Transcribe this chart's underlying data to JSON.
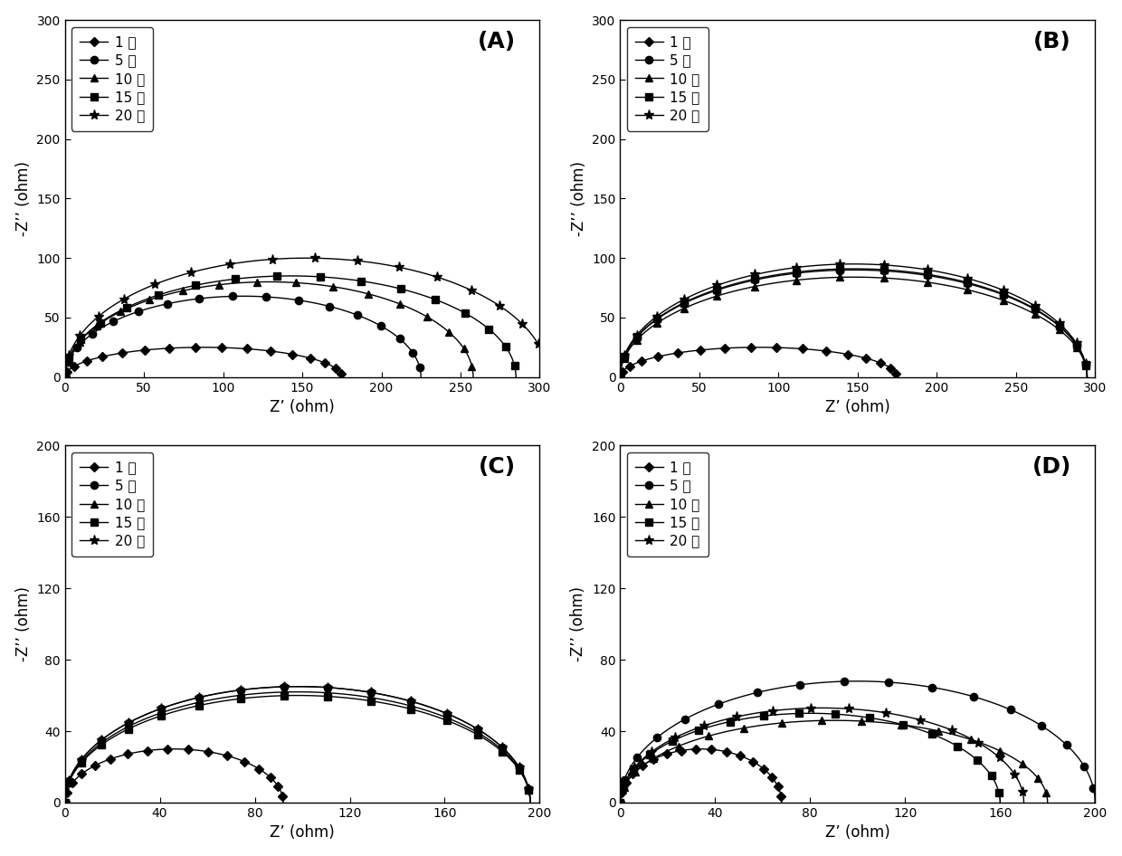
{
  "legend_labels": [
    "1 天",
    "5 天",
    "10 天",
    "15 天",
    "20 天"
  ],
  "markers": [
    "D",
    "o",
    "^",
    "s",
    "*"
  ],
  "marker_sizes": [
    5,
    6,
    6,
    6,
    8
  ],
  "color": "black",
  "linewidth": 1.0,
  "panel_A": {
    "xlim": [
      0,
      300
    ],
    "ylim": [
      0,
      300
    ],
    "xticks": [
      0,
      50,
      100,
      150,
      200,
      250,
      300
    ],
    "yticks": [
      0,
      50,
      100,
      150,
      200,
      250,
      300
    ],
    "xlabel": "Z’ (ohm)",
    "ylabel": "-Z’’ (ohm)",
    "label": "(A)",
    "series": [
      {
        "x0": 0,
        "x1": 175,
        "peak_y": 25
      },
      {
        "x0": 0,
        "x1": 225,
        "peak_y": 68
      },
      {
        "x0": 0,
        "x1": 258,
        "peak_y": 80
      },
      {
        "x0": 0,
        "x1": 285,
        "peak_y": 85
      },
      {
        "x0": 0,
        "x1": 305,
        "peak_y": 100
      }
    ]
  },
  "panel_B": {
    "xlim": [
      0,
      300
    ],
    "ylim": [
      0,
      300
    ],
    "xticks": [
      0,
      50,
      100,
      150,
      200,
      250,
      300
    ],
    "yticks": [
      0,
      50,
      100,
      150,
      200,
      250,
      300
    ],
    "xlabel": "Z’ (ohm)",
    "ylabel": "-Z’’ (ohm)",
    "label": "(B)",
    "series": [
      {
        "x0": 0,
        "x1": 175,
        "peak_y": 25
      },
      {
        "x0": 0,
        "x1": 295,
        "peak_y": 90
      },
      {
        "x0": 0,
        "x1": 295,
        "peak_y": 84
      },
      {
        "x0": 0,
        "x1": 295,
        "peak_y": 91
      },
      {
        "x0": 0,
        "x1": 295,
        "peak_y": 95
      }
    ]
  },
  "panel_C": {
    "xlim": [
      0,
      200
    ],
    "ylim": [
      0,
      200
    ],
    "xticks": [
      0,
      40,
      80,
      120,
      160,
      200
    ],
    "yticks": [
      0,
      40,
      80,
      120,
      160,
      200
    ],
    "xlabel": "Z’ (ohm)",
    "ylabel": "-Z’’ (ohm)",
    "label": "(C)",
    "series": [
      {
        "x0": 0,
        "x1": 92,
        "peak_y": 30
      },
      {
        "x0": 0,
        "x1": 196,
        "peak_y": 65
      },
      {
        "x0": 0,
        "x1": 196,
        "peak_y": 62
      },
      {
        "x0": 0,
        "x1": 196,
        "peak_y": 60
      },
      {
        "x0": 0,
        "x1": 196,
        "peak_y": 65
      }
    ]
  },
  "panel_D": {
    "xlim": [
      0,
      200
    ],
    "ylim": [
      0,
      200
    ],
    "xticks": [
      0,
      40,
      80,
      120,
      160,
      200
    ],
    "yticks": [
      0,
      40,
      80,
      120,
      160,
      200
    ],
    "xlabel": "Z’ (ohm)",
    "ylabel": "-Z’’ (ohm)",
    "label": "(D)",
    "series": [
      {
        "x0": 0,
        "x1": 68,
        "peak_y": 30
      },
      {
        "x0": 0,
        "x1": 200,
        "peak_y": 68
      },
      {
        "x0": 0,
        "x1": 180,
        "peak_y": 46
      },
      {
        "x0": 0,
        "x1": 160,
        "peak_y": 50
      },
      {
        "x0": 0,
        "x1": 170,
        "peak_y": 53
      }
    ]
  }
}
